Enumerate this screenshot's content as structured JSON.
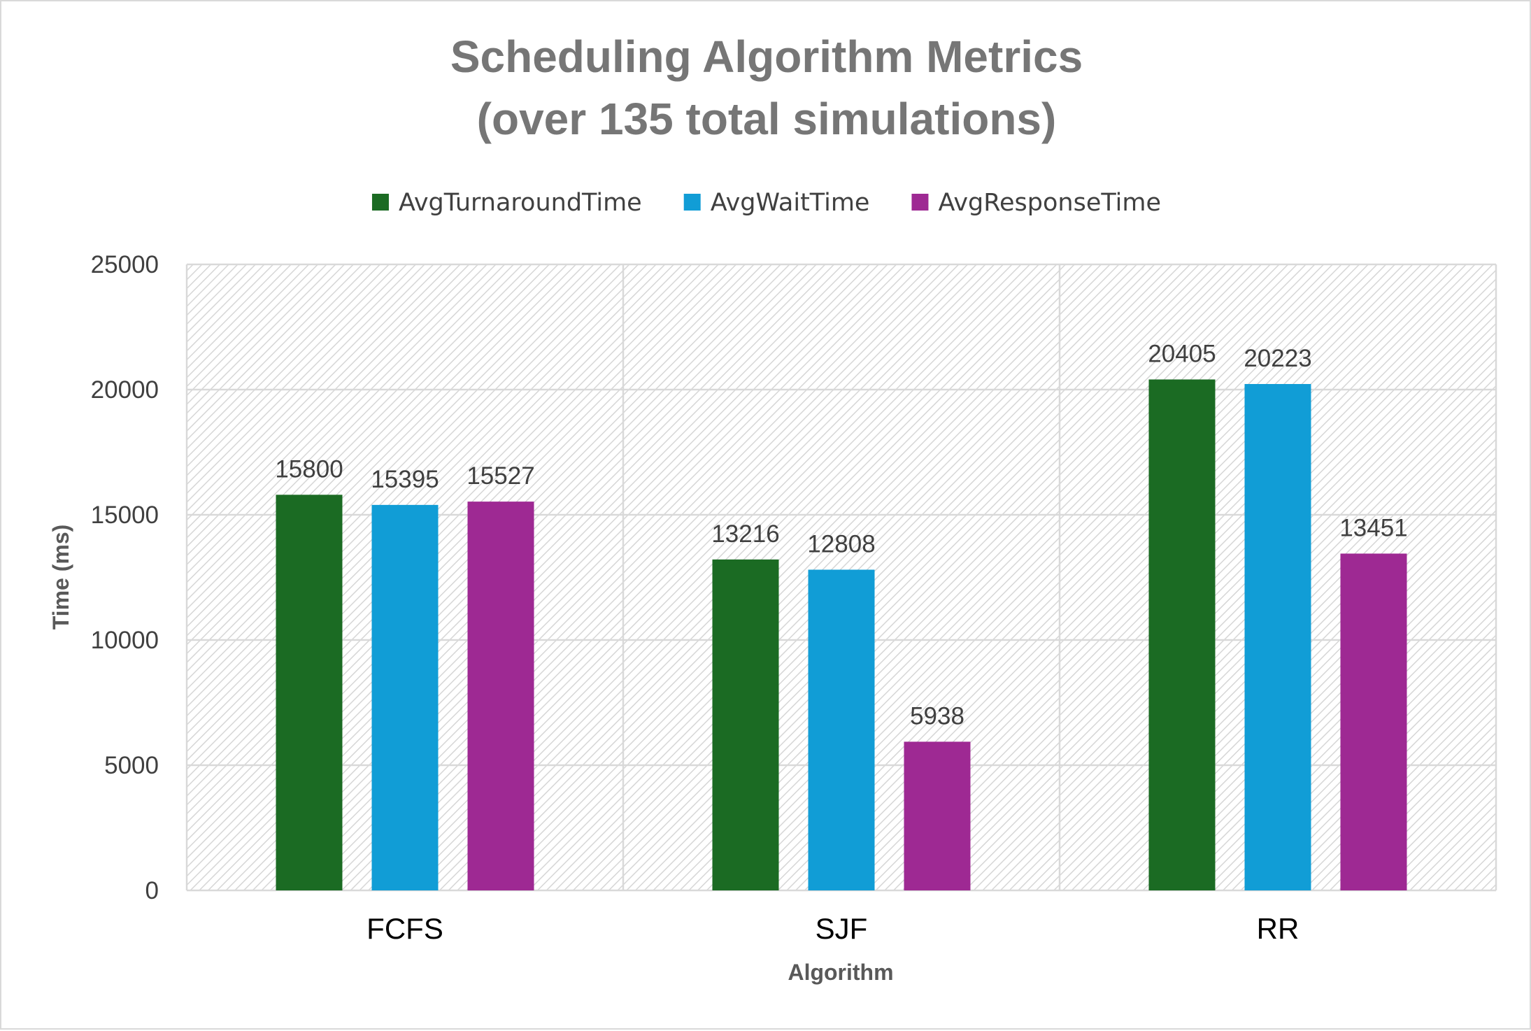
{
  "chart_data": {
    "type": "bar",
    "title_lines": [
      "Scheduling Algorithm Metrics",
      "(over 135 total simulations)"
    ],
    "xlabel": "Algorithm",
    "ylabel": "Time (ms)",
    "ylim": [
      0,
      25000
    ],
    "yticks": [
      "0",
      "5000",
      "10000",
      "15000",
      "20000",
      "25000"
    ],
    "categories": [
      "FCFS",
      "SJF",
      "RR"
    ],
    "grid": true,
    "legend_position": "top",
    "series": [
      {
        "name": "AvgTurnaroundTime",
        "color": "#1b6b23",
        "values": [
          15800,
          13216,
          20405
        ]
      },
      {
        "name": "AvgWaitTime",
        "color": "#119dd6",
        "values": [
          15395,
          12808,
          20223
        ]
      },
      {
        "name": "AvgResponseTime",
        "color": "#9e2993",
        "values": [
          15527,
          5938,
          13451
        ]
      }
    ]
  }
}
